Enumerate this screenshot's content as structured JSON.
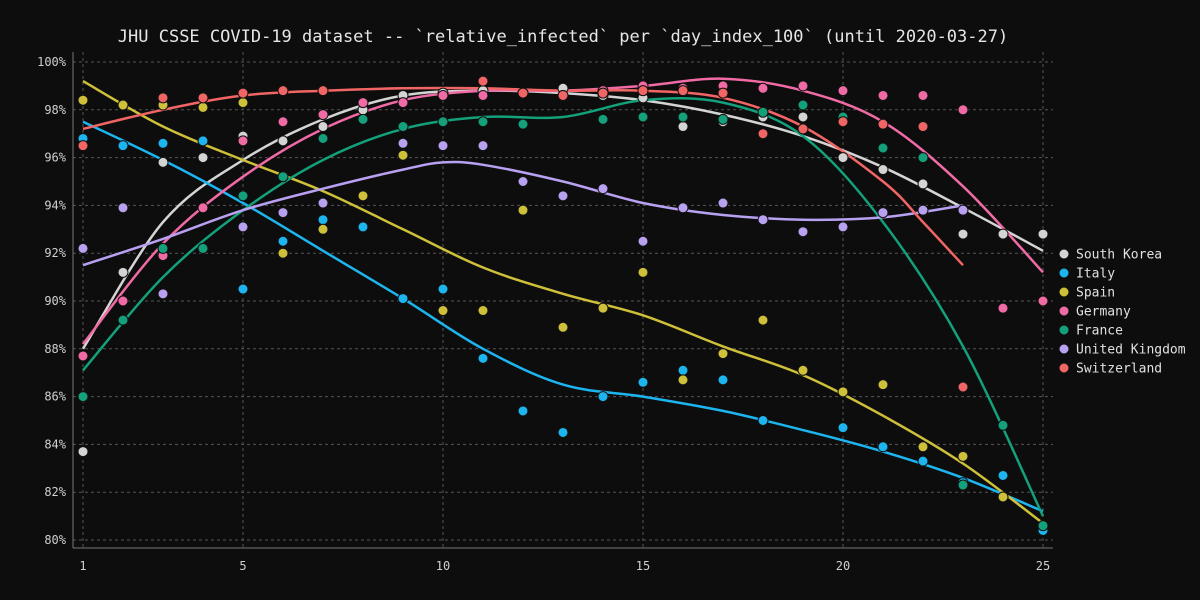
{
  "chart_data": {
    "type": "scatter",
    "title": "JHU CSSE COVID-19 dataset -- `relative_infected` per `day_index_100` (until 2020-03-27)",
    "xlabel": "",
    "ylabel": "",
    "xlim": [
      1,
      25
    ],
    "ylim": [
      80,
      100
    ],
    "x_ticks": [
      1,
      5,
      10,
      15,
      20,
      25
    ],
    "y_ticks": [
      80,
      82,
      84,
      86,
      88,
      90,
      92,
      94,
      96,
      98,
      100
    ],
    "y_tick_suffix": "%",
    "grid": true,
    "legend_position": "right",
    "series": [
      {
        "name": "South Korea",
        "color": "#d4d4d4",
        "points": [
          [
            1,
            83.7
          ],
          [
            2,
            91.2
          ],
          [
            3,
            95.8
          ],
          [
            4,
            96.0
          ],
          [
            5,
            96.9
          ],
          [
            6,
            96.7
          ],
          [
            7,
            97.3
          ],
          [
            8,
            98.0
          ],
          [
            9,
            98.6
          ],
          [
            10,
            98.7
          ],
          [
            11,
            98.8
          ],
          [
            12,
            98.7
          ],
          [
            13,
            98.9
          ],
          [
            14,
            98.6
          ],
          [
            15,
            98.5
          ],
          [
            16,
            97.3
          ],
          [
            17,
            97.5
          ],
          [
            18,
            97.7
          ],
          [
            19,
            97.7
          ],
          [
            20,
            96.0
          ],
          [
            21,
            95.5
          ],
          [
            22,
            94.9
          ],
          [
            23,
            92.8
          ],
          [
            24,
            92.8
          ],
          [
            25,
            92.8
          ]
        ],
        "trend": [
          [
            1,
            88.0
          ],
          [
            3,
            93.3
          ],
          [
            5,
            95.9
          ],
          [
            7,
            97.6
          ],
          [
            9,
            98.6
          ],
          [
            11,
            98.8
          ],
          [
            13,
            98.7
          ],
          [
            15,
            98.4
          ],
          [
            17,
            97.8
          ],
          [
            19,
            96.9
          ],
          [
            21,
            95.6
          ],
          [
            23,
            93.9
          ],
          [
            25,
            92.1
          ]
        ]
      },
      {
        "name": "Italy",
        "color": "#1cb5f0",
        "points": [
          [
            1,
            96.8
          ],
          [
            2,
            96.5
          ],
          [
            3,
            96.6
          ],
          [
            4,
            96.7
          ],
          [
            5,
            90.5
          ],
          [
            6,
            92.5
          ],
          [
            7,
            93.4
          ],
          [
            8,
            93.1
          ],
          [
            9,
            90.1
          ],
          [
            10,
            90.5
          ],
          [
            11,
            87.6
          ],
          [
            12,
            85.4
          ],
          [
            13,
            84.5
          ],
          [
            14,
            86.0
          ],
          [
            15,
            86.6
          ],
          [
            16,
            87.1
          ],
          [
            17,
            86.7
          ],
          [
            18,
            85.0
          ],
          [
            20,
            84.7
          ],
          [
            21,
            83.9
          ],
          [
            22,
            83.3
          ],
          [
            23,
            82.4
          ],
          [
            24,
            82.7
          ],
          [
            25,
            80.4
          ]
        ],
        "trend": [
          [
            1,
            97.5
          ],
          [
            3,
            95.9
          ],
          [
            5,
            94.1
          ],
          [
            7,
            92.1
          ],
          [
            9,
            90.1
          ],
          [
            11,
            88.0
          ],
          [
            13,
            86.5
          ],
          [
            15,
            86.0
          ],
          [
            17,
            85.4
          ],
          [
            19,
            84.6
          ],
          [
            21,
            83.7
          ],
          [
            23,
            82.6
          ],
          [
            25,
            81.2
          ]
        ]
      },
      {
        "name": "Spain",
        "color": "#cfc03a",
        "points": [
          [
            1,
            98.4
          ],
          [
            2,
            98.2
          ],
          [
            3,
            98.2
          ],
          [
            4,
            98.1
          ],
          [
            5,
            98.3
          ],
          [
            6,
            92.0
          ],
          [
            7,
            93.0
          ],
          [
            8,
            94.4
          ],
          [
            9,
            96.1
          ],
          [
            10,
            89.6
          ],
          [
            11,
            89.6
          ],
          [
            12,
            93.8
          ],
          [
            13,
            88.9
          ],
          [
            14,
            89.7
          ],
          [
            15,
            91.2
          ],
          [
            16,
            86.7
          ],
          [
            17,
            87.8
          ],
          [
            18,
            89.2
          ],
          [
            19,
            87.1
          ],
          [
            20,
            86.2
          ],
          [
            21,
            86.5
          ],
          [
            22,
            83.9
          ],
          [
            23,
            83.5
          ],
          [
            24,
            81.8
          ],
          [
            25,
            80.6
          ]
        ],
        "trend": [
          [
            1,
            99.2
          ],
          [
            3,
            97.3
          ],
          [
            5,
            95.9
          ],
          [
            7,
            94.6
          ],
          [
            9,
            93.0
          ],
          [
            11,
            91.4
          ],
          [
            13,
            90.3
          ],
          [
            15,
            89.4
          ],
          [
            17,
            88.1
          ],
          [
            19,
            86.9
          ],
          [
            21,
            85.2
          ],
          [
            23,
            83.2
          ],
          [
            25,
            80.7
          ]
        ]
      },
      {
        "name": "Germany",
        "color": "#f06ba6",
        "points": [
          [
            1,
            87.7
          ],
          [
            2,
            90.0
          ],
          [
            3,
            91.9
          ],
          [
            4,
            93.9
          ],
          [
            5,
            96.7
          ],
          [
            6,
            97.5
          ],
          [
            7,
            97.8
          ],
          [
            8,
            98.3
          ],
          [
            9,
            98.3
          ],
          [
            10,
            98.6
          ],
          [
            11,
            98.6
          ],
          [
            12,
            98.7
          ],
          [
            13,
            98.6
          ],
          [
            14,
            98.8
          ],
          [
            15,
            99.0
          ],
          [
            16,
            98.9
          ],
          [
            17,
            99.0
          ],
          [
            18,
            98.9
          ],
          [
            19,
            99.0
          ],
          [
            20,
            98.8
          ],
          [
            21,
            98.6
          ],
          [
            22,
            98.6
          ],
          [
            23,
            98.0
          ],
          [
            24,
            89.7
          ],
          [
            25,
            90.0
          ]
        ],
        "trend": [
          [
            1,
            88.2
          ],
          [
            3,
            92.4
          ],
          [
            5,
            95.2
          ],
          [
            7,
            97.2
          ],
          [
            9,
            98.4
          ],
          [
            11,
            98.8
          ],
          [
            13,
            98.8
          ],
          [
            15,
            99.0
          ],
          [
            17,
            99.3
          ],
          [
            19,
            98.8
          ],
          [
            21,
            97.5
          ],
          [
            23,
            94.8
          ],
          [
            25,
            91.2
          ]
        ]
      },
      {
        "name": "France",
        "color": "#13a07b",
        "points": [
          [
            1,
            86.0
          ],
          [
            2,
            89.2
          ],
          [
            3,
            92.2
          ],
          [
            4,
            92.2
          ],
          [
            5,
            94.4
          ],
          [
            6,
            95.2
          ],
          [
            7,
            96.8
          ],
          [
            8,
            97.6
          ],
          [
            9,
            97.3
          ],
          [
            10,
            97.5
          ],
          [
            11,
            97.5
          ],
          [
            12,
            97.4
          ],
          [
            14,
            97.6
          ],
          [
            15,
            97.7
          ],
          [
            16,
            97.7
          ],
          [
            17,
            97.6
          ],
          [
            18,
            97.9
          ],
          [
            19,
            98.2
          ],
          [
            20,
            97.7
          ],
          [
            21,
            96.4
          ],
          [
            22,
            96.0
          ],
          [
            23,
            82.3
          ],
          [
            24,
            84.8
          ],
          [
            25,
            80.6
          ]
        ],
        "trend": [
          [
            1,
            87.1
          ],
          [
            3,
            91.0
          ],
          [
            5,
            93.8
          ],
          [
            7,
            95.9
          ],
          [
            9,
            97.2
          ],
          [
            11,
            97.7
          ],
          [
            13,
            97.7
          ],
          [
            15,
            98.4
          ],
          [
            17,
            98.3
          ],
          [
            19,
            96.9
          ],
          [
            21,
            93.3
          ],
          [
            23,
            88.1
          ],
          [
            25,
            81.0
          ]
        ]
      },
      {
        "name": "United Kingdom",
        "color": "#b9a1f2",
        "points": [
          [
            1,
            92.2
          ],
          [
            2,
            93.9
          ],
          [
            3,
            90.3
          ],
          [
            5,
            93.1
          ],
          [
            6,
            93.7
          ],
          [
            7,
            94.1
          ],
          [
            9,
            96.6
          ],
          [
            10,
            96.5
          ],
          [
            11,
            96.5
          ],
          [
            12,
            95.0
          ],
          [
            13,
            94.4
          ],
          [
            14,
            94.7
          ],
          [
            15,
            92.5
          ],
          [
            16,
            93.9
          ],
          [
            17,
            94.1
          ],
          [
            18,
            93.4
          ],
          [
            19,
            92.9
          ],
          [
            20,
            93.1
          ],
          [
            21,
            93.7
          ],
          [
            22,
            93.8
          ],
          [
            23,
            93.8
          ]
        ],
        "trend": [
          [
            1,
            91.5
          ],
          [
            3,
            92.6
          ],
          [
            5,
            93.8
          ],
          [
            7,
            94.7
          ],
          [
            9,
            95.5
          ],
          [
            10,
            95.8
          ],
          [
            11,
            95.7
          ],
          [
            13,
            95.0
          ],
          [
            15,
            94.1
          ],
          [
            17,
            93.6
          ],
          [
            19,
            93.4
          ],
          [
            21,
            93.5
          ],
          [
            23,
            94.0
          ]
        ]
      },
      {
        "name": "Switzerland",
        "color": "#f26565",
        "points": [
          [
            1,
            96.5
          ],
          [
            3,
            98.5
          ],
          [
            4,
            98.5
          ],
          [
            5,
            98.7
          ],
          [
            6,
            98.8
          ],
          [
            7,
            98.8
          ],
          [
            11,
            99.2
          ],
          [
            12,
            98.7
          ],
          [
            13,
            98.6
          ],
          [
            14,
            98.7
          ],
          [
            15,
            98.8
          ],
          [
            16,
            98.8
          ],
          [
            17,
            98.7
          ],
          [
            18,
            97.0
          ],
          [
            19,
            97.2
          ],
          [
            20,
            97.5
          ],
          [
            21,
            97.4
          ],
          [
            22,
            97.3
          ],
          [
            23,
            86.4
          ]
        ],
        "trend": [
          [
            1,
            97.2
          ],
          [
            3,
            98.0
          ],
          [
            5,
            98.6
          ],
          [
            7,
            98.8
          ],
          [
            9,
            98.9
          ],
          [
            11,
            98.9
          ],
          [
            13,
            98.8
          ],
          [
            15,
            98.8
          ],
          [
            17,
            98.5
          ],
          [
            19,
            97.3
          ],
          [
            21,
            95.0
          ],
          [
            22,
            93.3
          ],
          [
            23,
            91.5
          ]
        ]
      }
    ]
  }
}
